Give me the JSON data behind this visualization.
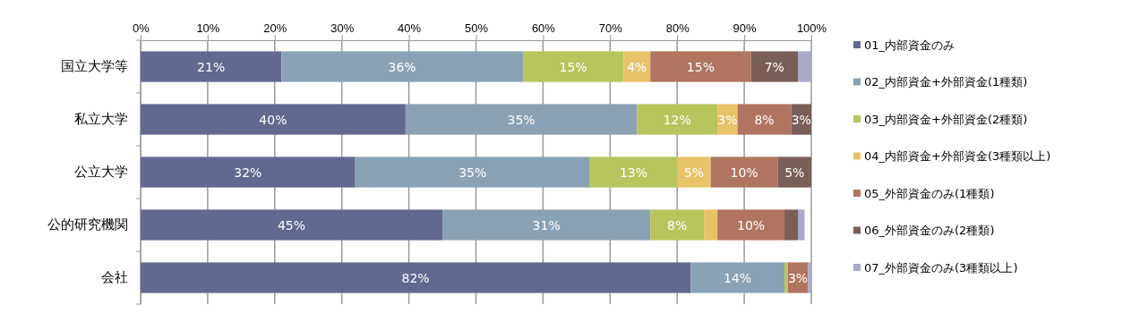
{
  "chart_data": {
    "type": "bar",
    "orientation": "horizontal",
    "stacked": true,
    "grid": "x",
    "legend": "right",
    "categories": [
      "国立大学等",
      "私立大学",
      "公立大学",
      "公的研究機関",
      "会社"
    ],
    "xlim": [
      0,
      100
    ],
    "xticks": [
      {
        "value": 0,
        "label": "0%"
      },
      {
        "value": 10,
        "label": "10%"
      },
      {
        "value": 20,
        "label": "20%"
      },
      {
        "value": 30,
        "label": "30%"
      },
      {
        "value": 40,
        "label": "40%"
      },
      {
        "value": 50,
        "label": "50%"
      },
      {
        "value": 60,
        "label": "60%"
      },
      {
        "value": 70,
        "label": "70%"
      },
      {
        "value": 80,
        "label": "80%"
      },
      {
        "value": 90,
        "label": "90%"
      },
      {
        "value": 100,
        "label": "100%"
      }
    ],
    "series": [
      {
        "name": "01_内部資金のみ",
        "color": "#626890",
        "values": [
          21,
          39.5,
          32,
          45,
          82
        ],
        "value_labels": [
          "21%",
          "40%",
          "32%",
          "45%",
          "82%"
        ]
      },
      {
        "name": "02_内部資金+外部資金(1種類)",
        "color": "#8aa2b5",
        "values": [
          36,
          34.5,
          35,
          31,
          14
        ],
        "value_labels": [
          "36%",
          "35%",
          "35%",
          "31%",
          "14%"
        ]
      },
      {
        "name": "03_内部資金+外部資金(2種類)",
        "color": "#b8c55e",
        "values": [
          15,
          12,
          13,
          8,
          0.5
        ],
        "value_labels": [
          "15%",
          "12%",
          "13%",
          "8%",
          null
        ]
      },
      {
        "name": "04_内部資金+外部資金(3種類以上)",
        "color": "#e8c36a",
        "values": [
          4,
          3,
          5,
          2,
          null
        ],
        "value_labels": [
          "4%",
          "3%",
          "5%",
          null,
          null
        ]
      },
      {
        "name": "05_外部資金のみ(1種類)",
        "color": "#b07560",
        "values": [
          15,
          8,
          10,
          10,
          3
        ],
        "value_labels": [
          "15%",
          "8%",
          "10%",
          "10%",
          "3%"
        ]
      },
      {
        "name": "06_外部資金のみ(2種類)",
        "color": "#7a5e58",
        "values": [
          7,
          3,
          5,
          2,
          null
        ],
        "value_labels": [
          "7%",
          "3%",
          "5%",
          null,
          null
        ]
      },
      {
        "name": "07_外部資金のみ(3種類以上)",
        "color": "#a9aac8",
        "values": [
          2,
          null,
          null,
          1,
          0.5
        ],
        "value_labels": [
          null,
          null,
          null,
          null,
          null
        ]
      }
    ]
  }
}
